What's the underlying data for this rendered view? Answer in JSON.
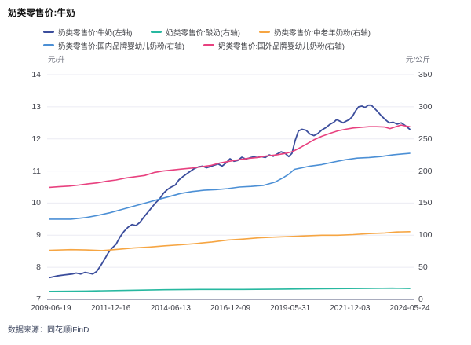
{
  "page": {
    "title": "奶类零售价:牛奶",
    "source_note": "数据来源：同花顺iFinD"
  },
  "colors": {
    "milk": "#3b4d9c",
    "yogurt": "#27b8a0",
    "elderly_powder": "#f6a542",
    "domestic_infant_powder": "#4b8fd5",
    "foreign_infant_powder": "#e8417f",
    "grid": "#ebebf3",
    "axis_line": "#a9acbe",
    "tick_text": "#44464f"
  },
  "chart_data": {
    "type": "line",
    "title": "奶类零售价:牛奶",
    "grid": true,
    "legend_position": "top",
    "left_axis": {
      "unit": "元/升",
      "min": 7,
      "max": 14,
      "ticks": [
        14,
        13,
        12,
        11,
        10,
        9,
        8,
        7
      ]
    },
    "right_axis": {
      "unit": "元/公斤",
      "min": 0,
      "max": 350,
      "ticks": [
        350,
        300,
        250,
        200,
        150,
        100,
        50,
        0
      ]
    },
    "x_axis": {
      "start": "2009-06-19",
      "end": "2024-05-24",
      "tick_labels": [
        "2009-06-19",
        "2011-12-16",
        "2014-06-13",
        "2016-12-09",
        "2019-05-31",
        "2021-12-03",
        "2024-05-24"
      ]
    },
    "legend_rows": [
      [
        0,
        1,
        2
      ],
      [
        3,
        4
      ]
    ],
    "series": [
      {
        "name": "奶类零售价:牛奶(左轴)",
        "axis": "left",
        "color": "#3b4d9c",
        "width": 1.8,
        "points": [
          [
            0,
            7.68
          ],
          [
            0.02,
            7.73
          ],
          [
            0.041,
            7.76
          ],
          [
            0.063,
            7.79
          ],
          [
            0.074,
            7.82
          ],
          [
            0.087,
            7.79
          ],
          [
            0.098,
            7.84
          ],
          [
            0.109,
            7.82
          ],
          [
            0.12,
            7.79
          ],
          [
            0.131,
            7.87
          ],
          [
            0.142,
            8.05
          ],
          [
            0.153,
            8.25
          ],
          [
            0.163,
            8.45
          ],
          [
            0.174,
            8.6
          ],
          [
            0.185,
            8.72
          ],
          [
            0.196,
            8.95
          ],
          [
            0.207,
            9.12
          ],
          [
            0.218,
            9.25
          ],
          [
            0.229,
            9.33
          ],
          [
            0.24,
            9.3
          ],
          [
            0.251,
            9.4
          ],
          [
            0.261,
            9.55
          ],
          [
            0.272,
            9.7
          ],
          [
            0.283,
            9.85
          ],
          [
            0.294,
            10.0
          ],
          [
            0.305,
            10.12
          ],
          [
            0.316,
            10.3
          ],
          [
            0.327,
            10.42
          ],
          [
            0.338,
            10.5
          ],
          [
            0.349,
            10.56
          ],
          [
            0.359,
            10.72
          ],
          [
            0.37,
            10.82
          ],
          [
            0.381,
            10.91
          ],
          [
            0.392,
            11.0
          ],
          [
            0.403,
            11.08
          ],
          [
            0.414,
            11.13
          ],
          [
            0.425,
            11.15
          ],
          [
            0.436,
            11.1
          ],
          [
            0.447,
            11.14
          ],
          [
            0.458,
            11.18
          ],
          [
            0.468,
            11.22
          ],
          [
            0.479,
            11.15
          ],
          [
            0.49,
            11.25
          ],
          [
            0.501,
            11.38
          ],
          [
            0.512,
            11.3
          ],
          [
            0.523,
            11.33
          ],
          [
            0.534,
            11.43
          ],
          [
            0.545,
            11.37
          ],
          [
            0.556,
            11.41
          ],
          [
            0.566,
            11.44
          ],
          [
            0.577,
            11.42
          ],
          [
            0.588,
            11.45
          ],
          [
            0.599,
            11.42
          ],
          [
            0.61,
            11.5
          ],
          [
            0.621,
            11.46
          ],
          [
            0.632,
            11.53
          ],
          [
            0.643,
            11.6
          ],
          [
            0.654,
            11.55
          ],
          [
            0.664,
            11.45
          ],
          [
            0.673,
            11.55
          ],
          [
            0.682,
            11.95
          ],
          [
            0.691,
            12.25
          ],
          [
            0.701,
            12.3
          ],
          [
            0.712,
            12.27
          ],
          [
            0.723,
            12.15
          ],
          [
            0.734,
            12.1
          ],
          [
            0.745,
            12.17
          ],
          [
            0.756,
            12.28
          ],
          [
            0.767,
            12.35
          ],
          [
            0.778,
            12.45
          ],
          [
            0.789,
            12.52
          ],
          [
            0.797,
            12.6
          ],
          [
            0.806,
            12.55
          ],
          [
            0.815,
            12.5
          ],
          [
            0.823,
            12.55
          ],
          [
            0.832,
            12.6
          ],
          [
            0.841,
            12.7
          ],
          [
            0.85,
            12.88
          ],
          [
            0.858,
            13.0
          ],
          [
            0.867,
            13.02
          ],
          [
            0.876,
            12.98
          ],
          [
            0.885,
            13.05
          ],
          [
            0.893,
            13.05
          ],
          [
            0.902,
            12.95
          ],
          [
            0.911,
            12.85
          ],
          [
            0.921,
            12.72
          ],
          [
            0.932,
            12.6
          ],
          [
            0.943,
            12.5
          ],
          [
            0.954,
            12.52
          ],
          [
            0.965,
            12.46
          ],
          [
            0.976,
            12.5
          ],
          [
            0.987,
            12.42
          ],
          [
            1,
            12.3
          ]
        ]
      },
      {
        "name": "奶类零售价:酸奶(右轴)",
        "axis": "right",
        "color": "#27b8a0",
        "width": 1.6,
        "points": [
          [
            0,
            12.5
          ],
          [
            0.102,
            13
          ],
          [
            0.211,
            14
          ],
          [
            0.32,
            15
          ],
          [
            0.429,
            15.5
          ],
          [
            0.538,
            15.5
          ],
          [
            0.647,
            16
          ],
          [
            0.756,
            16.5
          ],
          [
            0.865,
            17
          ],
          [
            0.952,
            17.5
          ],
          [
            1,
            17
          ]
        ]
      },
      {
        "name": "奶类零售价:中老年奶粉(右轴)",
        "axis": "right",
        "color": "#f6a542",
        "width": 1.6,
        "points": [
          [
            0,
            76.5
          ],
          [
            0.059,
            77.5
          ],
          [
            0.102,
            77
          ],
          [
            0.146,
            76
          ],
          [
            0.19,
            78
          ],
          [
            0.233,
            80
          ],
          [
            0.277,
            81.5
          ],
          [
            0.32,
            83.5
          ],
          [
            0.364,
            85
          ],
          [
            0.407,
            87
          ],
          [
            0.451,
            89.5
          ],
          [
            0.495,
            92.5
          ],
          [
            0.538,
            94
          ],
          [
            0.582,
            96
          ],
          [
            0.625,
            97
          ],
          [
            0.669,
            98
          ],
          [
            0.712,
            99
          ],
          [
            0.756,
            100
          ],
          [
            0.8,
            100
          ],
          [
            0.843,
            101
          ],
          [
            0.887,
            102.5
          ],
          [
            0.93,
            103.5
          ],
          [
            0.963,
            105
          ],
          [
            1,
            105.5
          ]
        ]
      },
      {
        "name": "奶类零售价:国内品牌婴幼儿奶粉(右轴)",
        "axis": "right",
        "color": "#4b8fd5",
        "width": 1.6,
        "points": [
          [
            0,
            125
          ],
          [
            0.059,
            125
          ],
          [
            0.102,
            127.5
          ],
          [
            0.135,
            131
          ],
          [
            0.168,
            135
          ],
          [
            0.2,
            140
          ],
          [
            0.233,
            145
          ],
          [
            0.266,
            150
          ],
          [
            0.298,
            155
          ],
          [
            0.331,
            160
          ],
          [
            0.364,
            165
          ],
          [
            0.397,
            168
          ],
          [
            0.429,
            170
          ],
          [
            0.462,
            171
          ],
          [
            0.495,
            172.5
          ],
          [
            0.527,
            175
          ],
          [
            0.56,
            176
          ],
          [
            0.593,
            177.5
          ],
          [
            0.625,
            182.5
          ],
          [
            0.647,
            189
          ],
          [
            0.664,
            195
          ],
          [
            0.68,
            202.5
          ],
          [
            0.701,
            205
          ],
          [
            0.723,
            207.5
          ],
          [
            0.756,
            210
          ],
          [
            0.789,
            214
          ],
          [
            0.821,
            217.5
          ],
          [
            0.854,
            220
          ],
          [
            0.887,
            221
          ],
          [
            0.919,
            222.5
          ],
          [
            0.952,
            225
          ],
          [
            0.978,
            226.5
          ],
          [
            1,
            227.5
          ]
        ]
      },
      {
        "name": "奶类零售价:国外品牌婴幼儿奶粉(右轴)",
        "axis": "right",
        "color": "#e8417f",
        "width": 1.6,
        "points": [
          [
            0,
            174.5
          ],
          [
            0.026,
            175.5
          ],
          [
            0.054,
            176.5
          ],
          [
            0.081,
            178
          ],
          [
            0.107,
            180
          ],
          [
            0.133,
            181.5
          ],
          [
            0.159,
            184
          ],
          [
            0.185,
            186
          ],
          [
            0.211,
            189
          ],
          [
            0.237,
            191
          ],
          [
            0.264,
            193
          ],
          [
            0.29,
            197.5
          ],
          [
            0.316,
            200
          ],
          [
            0.342,
            201.5
          ],
          [
            0.368,
            203
          ],
          [
            0.394,
            204.5
          ],
          [
            0.42,
            206.5
          ],
          [
            0.447,
            208.5
          ],
          [
            0.473,
            212.5
          ],
          [
            0.499,
            215
          ],
          [
            0.525,
            217.5
          ],
          [
            0.551,
            219.5
          ],
          [
            0.577,
            221
          ],
          [
            0.603,
            223.5
          ],
          [
            0.63,
            225
          ],
          [
            0.656,
            227.5
          ],
          [
            0.673,
            230
          ],
          [
            0.691,
            235
          ],
          [
            0.712,
            241.5
          ],
          [
            0.734,
            248.5
          ],
          [
            0.756,
            254
          ],
          [
            0.778,
            258.5
          ],
          [
            0.8,
            262.5
          ],
          [
            0.821,
            265
          ],
          [
            0.843,
            267
          ],
          [
            0.865,
            268
          ],
          [
            0.887,
            269
          ],
          [
            0.908,
            269
          ],
          [
            0.93,
            268.5
          ],
          [
            0.945,
            266
          ],
          [
            0.961,
            269
          ],
          [
            0.976,
            271.5
          ],
          [
            0.989,
            270
          ],
          [
            1,
            269
          ]
        ]
      }
    ]
  }
}
